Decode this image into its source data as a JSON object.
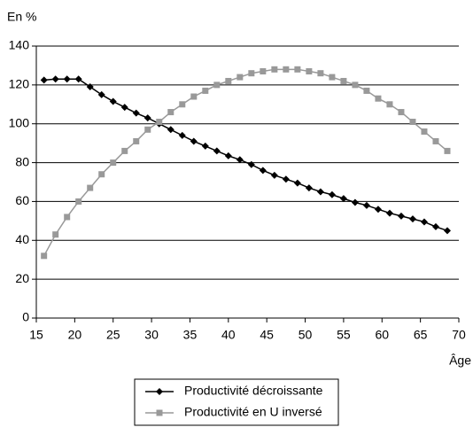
{
  "chart_data": {
    "type": "line",
    "y_label": "En %",
    "x_label": "Âge",
    "x": [
      16,
      17.5,
      19,
      20.5,
      22,
      23.5,
      25,
      26.5,
      28,
      29.5,
      31,
      32.5,
      34,
      35.5,
      37,
      38.5,
      40,
      41.5,
      43,
      44.5,
      46,
      47.5,
      49,
      50.5,
      52,
      53.5,
      55,
      56.5,
      58,
      59.5,
      61,
      62.5,
      64,
      65.5,
      67,
      68.5
    ],
    "series": [
      {
        "name": "Productivité décroissante",
        "color": "#000000",
        "marker": "diamond",
        "values": [
          122.5,
          123,
          123,
          123,
          119,
          115,
          111.5,
          108.5,
          105.5,
          103,
          100,
          97,
          94,
          91,
          88.5,
          86,
          83.5,
          81.5,
          79,
          76,
          73.5,
          71.5,
          69.5,
          67,
          65,
          63.5,
          61.5,
          59.5,
          58,
          56,
          54,
          52.5,
          51,
          49.5,
          47,
          45
        ]
      },
      {
        "name": "Productivité en U inversé",
        "color": "#999999",
        "marker": "square",
        "values": [
          32,
          43,
          52,
          60,
          67,
          74,
          80,
          86,
          91,
          97,
          101,
          106,
          110,
          114,
          117,
          120,
          122,
          124,
          126,
          127,
          128,
          128,
          128,
          127,
          126,
          124,
          122,
          120,
          117,
          113,
          110,
          106,
          101,
          96,
          91,
          86
        ]
      }
    ],
    "xlim": [
      15,
      70
    ],
    "xticks": [
      15,
      20,
      25,
      30,
      35,
      40,
      45,
      50,
      55,
      60,
      65,
      70
    ],
    "ylim": [
      0,
      140
    ],
    "yticks": [
      0,
      20,
      40,
      60,
      80,
      100,
      120,
      140
    ],
    "grid": true,
    "legend": "bottom"
  }
}
